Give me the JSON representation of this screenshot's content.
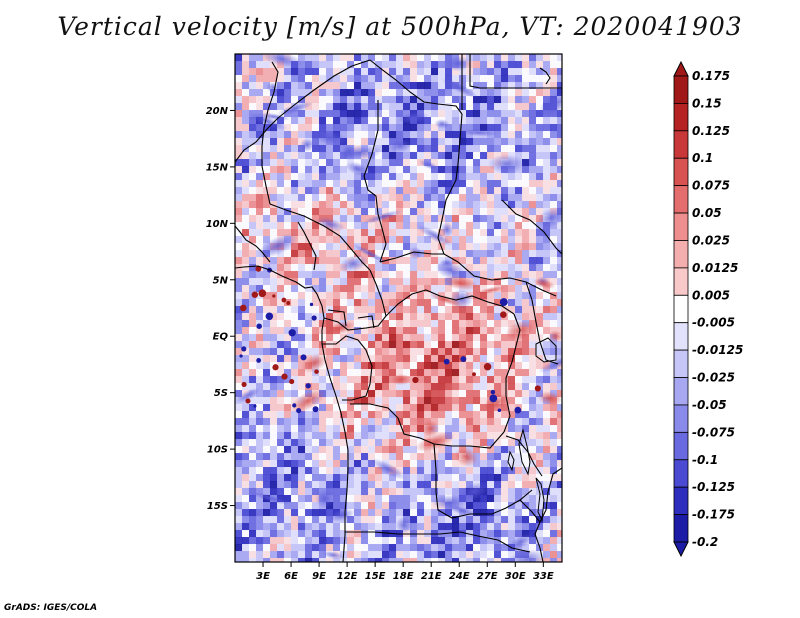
{
  "title": "Vertical velocity [m/s] at 500hPa, VT: 2020041903",
  "credit": "GrADS: IGES/COLA",
  "map": {
    "lon_range": [
      0,
      35
    ],
    "lat_range": [
      -20,
      25
    ],
    "lat_ticks": [
      {
        "value": 20,
        "label": "20N"
      },
      {
        "value": 15,
        "label": "15N"
      },
      {
        "value": 10,
        "label": "10N"
      },
      {
        "value": 5,
        "label": "5N"
      },
      {
        "value": 0,
        "label": "EQ"
      },
      {
        "value": -5,
        "label": "5S"
      },
      {
        "value": -10,
        "label": "10S"
      },
      {
        "value": -15,
        "label": "15S"
      }
    ],
    "lon_ticks": [
      {
        "value": 3,
        "label": "3E"
      },
      {
        "value": 6,
        "label": "6E"
      },
      {
        "value": 9,
        "label": "9E"
      },
      {
        "value": 12,
        "label": "12E"
      },
      {
        "value": 15,
        "label": "15E"
      },
      {
        "value": 18,
        "label": "18E"
      },
      {
        "value": 21,
        "label": "21E"
      },
      {
        "value": 24,
        "label": "24E"
      },
      {
        "value": 27,
        "label": "27E"
      },
      {
        "value": 30,
        "label": "30E"
      },
      {
        "value": 33,
        "label": "33E"
      }
    ]
  },
  "colorbar": {
    "levels": [
      {
        "label": "0.175",
        "color": "#a01818"
      },
      {
        "label": "0.15",
        "color": "#b52222"
      },
      {
        "label": "0.125",
        "color": "#c83838"
      },
      {
        "label": "0.1",
        "color": "#d85252"
      },
      {
        "label": "0.075",
        "color": "#e46e6e"
      },
      {
        "label": "0.05",
        "color": "#ee8e8e"
      },
      {
        "label": "0.025",
        "color": "#f5aeae"
      },
      {
        "label": "0.0125",
        "color": "#f9c9c9"
      },
      {
        "label": "0.005",
        "color": "#fce2e2"
      },
      {
        "label": "-0.005",
        "color": "#ffffff"
      },
      {
        "label": "-0.0125",
        "color": "#e2e2fc"
      },
      {
        "label": "-0.025",
        "color": "#c6c6f8"
      },
      {
        "label": "-0.05",
        "color": "#a8a8f2"
      },
      {
        "label": "-0.075",
        "color": "#8a8aea"
      },
      {
        "label": "-0.1",
        "color": "#6a6ae0"
      },
      {
        "label": "-0.125",
        "color": "#4a4ad2"
      },
      {
        "label": "-0.175",
        "color": "#2e2ebe"
      },
      {
        "label": "-0.2",
        "color": "#1c1ca6"
      }
    ],
    "top_color": "#a01818",
    "bottom_color": "#1c1ca6",
    "neutral_color": "#ffffff"
  }
}
